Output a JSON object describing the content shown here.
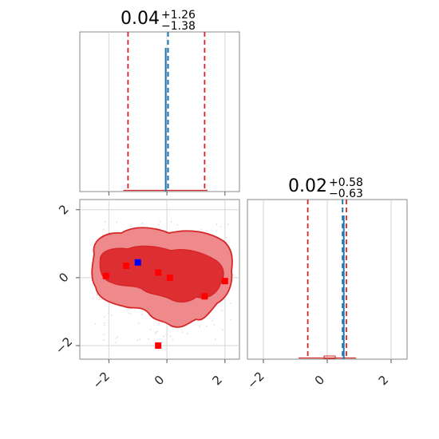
{
  "chart_data": {
    "type": "corner",
    "grid": true,
    "colors": {
      "truth": "#1f77b4",
      "quantile": "#d62728",
      "contour_fill_outer": "#ee8a8c",
      "contour_fill_inner": "#dd2f32",
      "contour_line": "#d62728",
      "marker_red": "#ff0000",
      "marker_blue": "#0000ff"
    },
    "panels": {
      "hist_x": {
        "title_value": "0.04",
        "title_plus": "+1.26",
        "title_minus": "−1.38",
        "xlim": [
          -3.0,
          2.5
        ],
        "quantiles": [
          -1.34,
          0.04,
          1.3
        ],
        "truth": 0.0,
        "xticks": [
          -2,
          0,
          2
        ]
      },
      "hist_y": {
        "title_value": "0.02",
        "title_plus": "+0.58",
        "title_minus": "−0.63",
        "xlim": [
          -2.5,
          2.5
        ],
        "quantiles": [
          -0.61,
          0.02,
          0.6
        ],
        "truth": 0.48,
        "xticks": [
          -2,
          0,
          2
        ],
        "xtick_labels": [
          "−2",
          "0",
          "2"
        ]
      },
      "joint": {
        "xlim": [
          -3.0,
          2.5
        ],
        "ylim": [
          -2.4,
          2.3
        ],
        "xticks": [
          -2,
          0,
          2
        ],
        "yticks": [
          -2,
          0,
          2
        ],
        "xtick_labels": [
          "−2",
          "0",
          "2"
        ],
        "ytick_labels": [
          "−2",
          "0",
          "2"
        ],
        "red_points": [
          {
            "x": -2.1,
            "y": 0.05
          },
          {
            "x": -1.4,
            "y": 0.35
          },
          {
            "x": -0.3,
            "y": 0.15
          },
          {
            "x": 0.1,
            "y": 0.0
          },
          {
            "x": 1.3,
            "y": -0.55
          },
          {
            "x": 2.0,
            "y": -0.1
          },
          {
            "x": -0.3,
            "y": -2.0
          }
        ],
        "blue_points": [
          {
            "x": -1.0,
            "y": 0.45
          }
        ]
      }
    }
  }
}
